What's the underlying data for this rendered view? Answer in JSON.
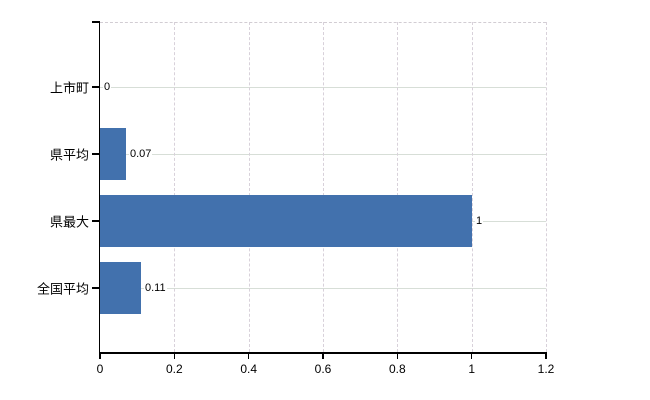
{
  "chart_data": {
    "type": "bar",
    "orientation": "horizontal",
    "title": "",
    "categories": [
      "上市町",
      "県平均",
      "県最大",
      "全国平均"
    ],
    "values": [
      0,
      0.07,
      1,
      0.11
    ],
    "value_labels": [
      "0",
      "0.07",
      "1",
      "0.11"
    ],
    "xlim": [
      0,
      1.2
    ],
    "xticks": [
      0,
      0.2,
      0.4,
      0.6,
      0.8,
      1,
      1.2
    ],
    "xtick_labels": [
      "0",
      "0.2",
      "0.4",
      "0.6",
      "0.8",
      "1",
      "1.2"
    ],
    "legend_position": "none",
    "grid": {
      "horizontal": "solid",
      "vertical": "dashed",
      "top_right_border": "dashed"
    },
    "colors": {
      "bar": "#4271ad",
      "axis": "#000000",
      "h_gridline": "#d7ded7",
      "v_gridline": "#d8d1da",
      "dashed_border": "#d2cdd3",
      "text": "#000000",
      "background": "#ffffff"
    }
  }
}
